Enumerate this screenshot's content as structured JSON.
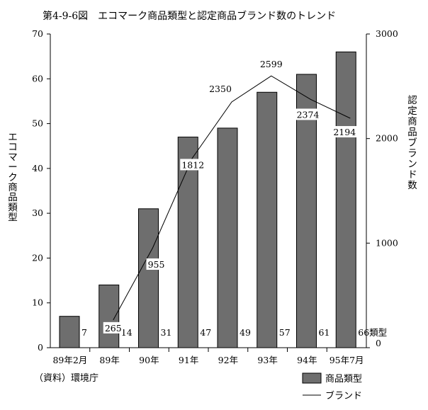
{
  "page": {
    "title": "第4-9-6図　エコマーク商品類型と認定商品ブランド数のトレンド",
    "source": "（資料）環境庁"
  },
  "chart_data": {
    "type": "bar+line",
    "categories": [
      "89年2月",
      "89年",
      "90年",
      "91年",
      "92年",
      "93年",
      "94年",
      "95年7月"
    ],
    "bar_series": {
      "name": "商品類型",
      "values": [
        7,
        14,
        31,
        47,
        49,
        57,
        61,
        66
      ],
      "color": "#6e6e6e",
      "axis": "left"
    },
    "line_series": {
      "name": "ブランド",
      "x_categories": [
        "89年",
        "90年",
        "91年",
        "92年",
        "93年",
        "94年",
        "95年7月"
      ],
      "values": [
        265,
        955,
        1812,
        2350,
        2599,
        2374,
        2194
      ],
      "color": "#000000",
      "axis": "right"
    },
    "left_axis": {
      "label": "エコマーク商品類型",
      "ylim": [
        0,
        70
      ],
      "ticks": [
        0,
        10,
        20,
        30,
        40,
        50,
        60,
        70
      ]
    },
    "right_axis": {
      "label": "認定商品ブランド数",
      "ylim": [
        0,
        3000
      ],
      "ticks": [
        0,
        1000,
        2000,
        3000
      ]
    },
    "last_bar_unit": "類型",
    "legend": {
      "position": "bottom-right",
      "entries": [
        {
          "label": "商品類型",
          "kind": "bar"
        },
        {
          "label": "ブランド",
          "kind": "line"
        }
      ]
    },
    "grid": false
  }
}
